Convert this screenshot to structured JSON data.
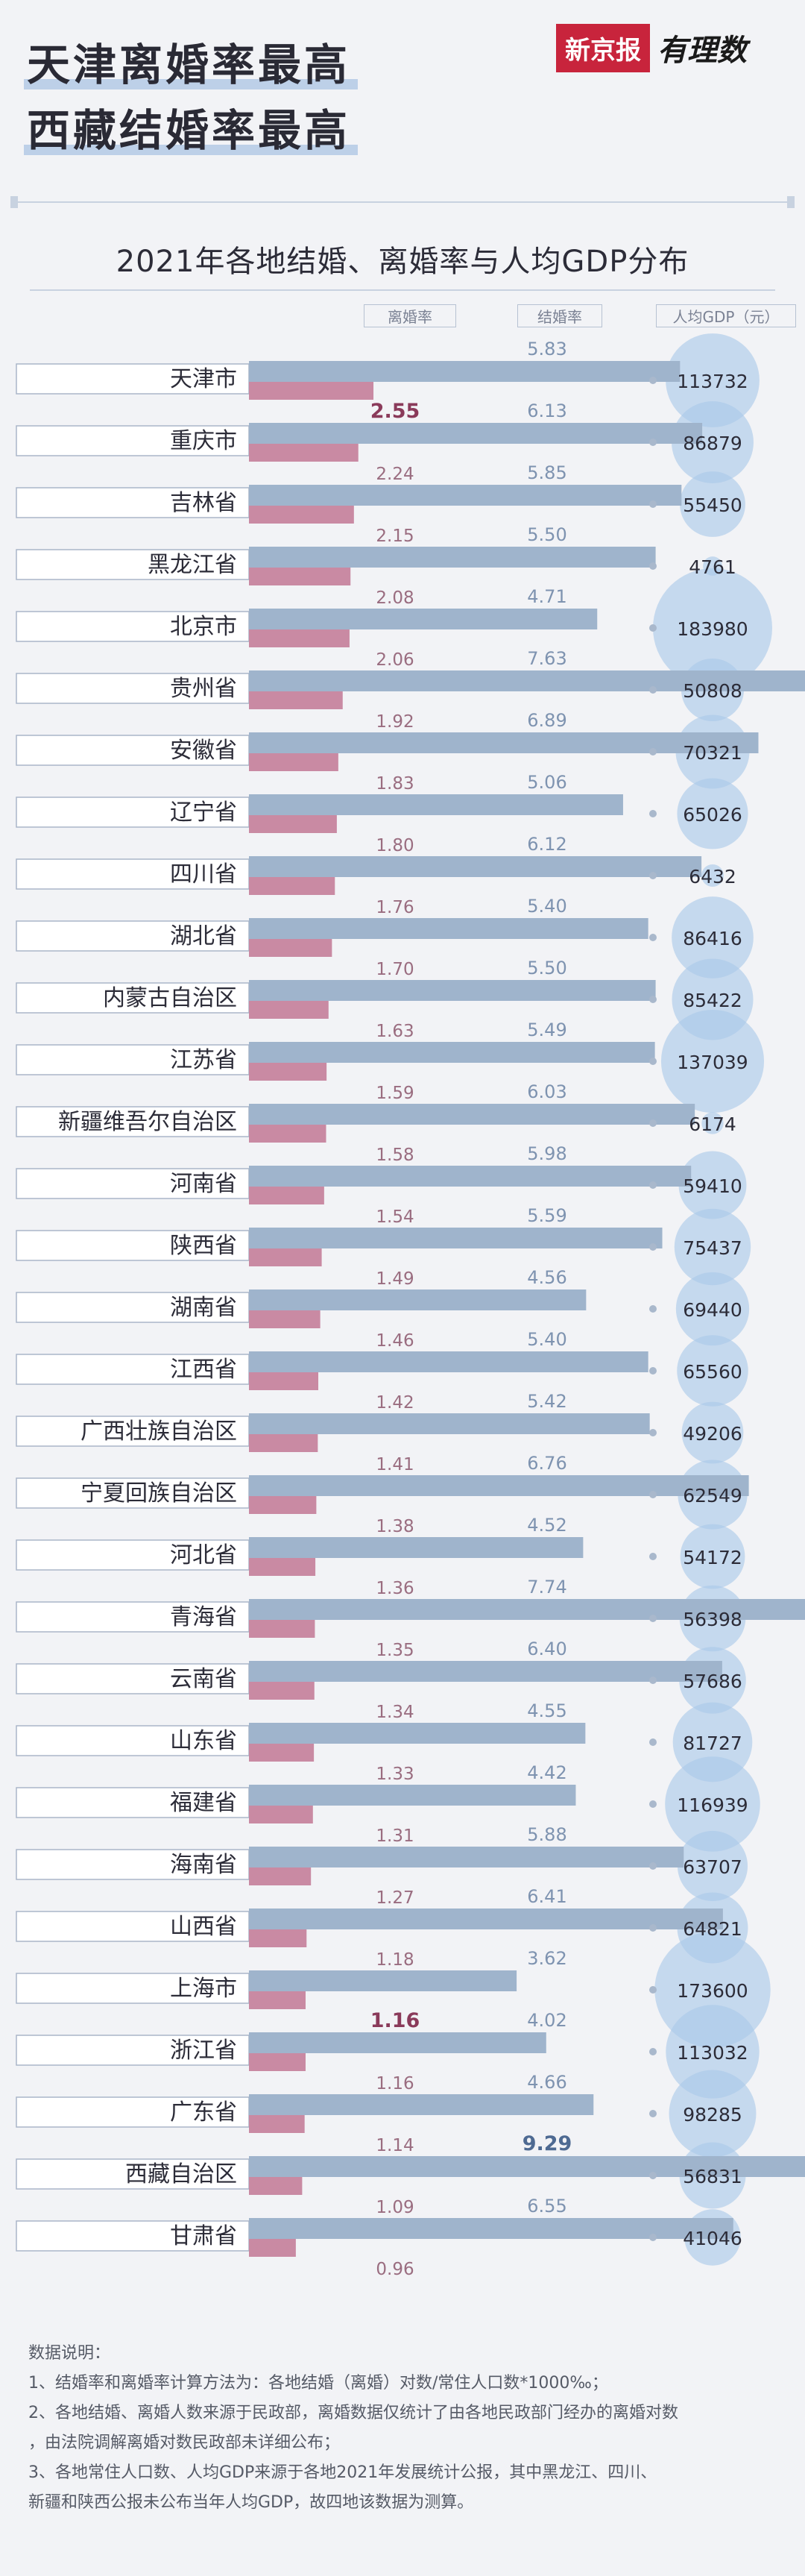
{
  "headline": {
    "line1": "天津离婚率最高",
    "line2": "西藏结婚率最高"
  },
  "logo": {
    "brand": "新京报",
    "column": "有理数"
  },
  "chart_data": {
    "type": "bar",
    "title": "2021年各地结婚、离婚率与人均GDP分布",
    "column_headers": {
      "divorce": "离婚率",
      "marriage": "结婚率",
      "gdp": "人均GDP（元）"
    },
    "categories": [
      "天津市",
      "重庆市",
      "吉林省",
      "黑龙江省",
      "北京市",
      "贵州省",
      "安徽省",
      "辽宁省",
      "四川省",
      "湖北省",
      "内蒙古自治区",
      "江苏省",
      "新疆维吾尔自治区",
      "河南省",
      "陕西省",
      "湖南省",
      "江西省",
      "广西壮族自治区",
      "宁夏回族自治区",
      "河北省",
      "青海省",
      "云南省",
      "山东省",
      "福建省",
      "海南省",
      "山西省",
      "上海市",
      "浙江省",
      "广东省",
      "西藏自治区",
      "甘肃省"
    ],
    "series": [
      {
        "name": "结婚率",
        "color": "#9fb4cc",
        "values": [
          5.83,
          6.13,
          5.85,
          5.5,
          4.71,
          7.63,
          6.89,
          5.06,
          6.12,
          5.4,
          5.5,
          5.49,
          6.03,
          5.98,
          5.59,
          4.56,
          5.4,
          5.42,
          6.76,
          4.52,
          7.74,
          6.4,
          4.55,
          4.42,
          5.88,
          6.41,
          3.62,
          4.02,
          4.66,
          9.29,
          6.55
        ]
      },
      {
        "name": "离婚率",
        "color": "#c98aa3",
        "values": [
          2.55,
          2.24,
          2.15,
          2.08,
          2.06,
          1.92,
          1.83,
          1.8,
          1.76,
          1.7,
          1.63,
          1.59,
          1.58,
          1.54,
          1.49,
          1.46,
          1.42,
          1.41,
          1.38,
          1.36,
          1.35,
          1.34,
          1.33,
          1.31,
          1.27,
          1.18,
          1.16,
          1.16,
          1.14,
          1.09,
          0.96
        ]
      },
      {
        "name": "人均GDP（元）",
        "color": "#a9c8e9",
        "values": [
          113732,
          86879,
          55450,
          4761,
          183980,
          50808,
          70321,
          65026,
          6432,
          86416,
          85422,
          137039,
          6174,
          59410,
          75437,
          69440,
          65560,
          49206,
          62549,
          54172,
          56398,
          57686,
          81727,
          116939,
          63707,
          64821,
          173600,
          113032,
          98285,
          56831,
          41046
        ]
      }
    ],
    "marriage_labels": [
      "5.83",
      "6.13",
      "5.85",
      "5.50",
      "4.71",
      "7.63",
      "6.89",
      "5.06",
      "6.12",
      "5.40",
      "5.50",
      "5.49",
      "6.03",
      "5.98",
      "5.59",
      "4.56",
      "5.40",
      "5.42",
      "6.76",
      "4.52",
      "7.74",
      "6.40",
      "4.55",
      "4.42",
      "5.88",
      "6.41",
      "3.62",
      "4.02",
      "4.66",
      "9.29",
      "6.55"
    ],
    "divorce_labels": [
      "2.55",
      "2.24",
      "2.15",
      "2.08",
      "2.06",
      "1.92",
      "1.83",
      "1.80",
      "1.76",
      "1.70",
      "1.63",
      "1.59",
      "1.58",
      "1.54",
      "1.49",
      "1.46",
      "1.42",
      "1.41",
      "1.38",
      "1.36",
      "1.35",
      "1.34",
      "1.33",
      "1.31",
      "1.27",
      "1.18",
      "1.16",
      "1.16",
      "1.14",
      "1.09",
      "0.96"
    ],
    "highlight": {
      "max_divorce": "天津市",
      "min_divorce_shown": "上海市",
      "max_marriage": "西藏自治区"
    }
  },
  "notes": {
    "heading": "数据说明：",
    "line1": "1、结婚率和离婚率计算方法为：各地结婚（离婚）对数/常住人口数*1000‰；",
    "line2a": "2、各地结婚、离婚人数来源于民政部，离婚数据仅统计了由各地民政部门经办的离婚对数",
    "line2b": "，由法院调解离婚对数民政部未详细公布；",
    "line3a": "3、各地常住人口数、人均GDP来源于各地2021年发展统计公报，其中黑龙江、四川、",
    "line3b": "新疆和陕西公报未公布当年人均GDP，故四地该数据为测算。"
  }
}
